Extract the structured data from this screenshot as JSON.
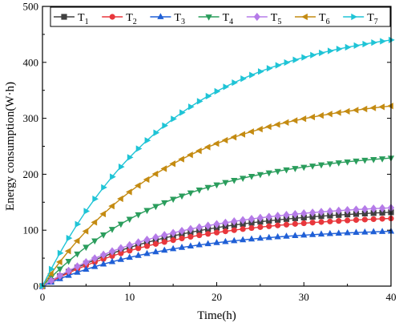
{
  "chart_data": {
    "type": "line",
    "xlabel": "Time(h)",
    "ylabel": "Energy consumption(W·h)",
    "xlim": [
      0,
      40
    ],
    "ylim": [
      0,
      500
    ],
    "xticks": [
      0,
      10,
      20,
      30,
      40
    ],
    "yticks": [
      0,
      100,
      200,
      300,
      400,
      500
    ],
    "grid": false,
    "legend_position": "top",
    "x": [
      0,
      40
    ],
    "series": [
      {
        "name": "T",
        "sub": "1",
        "color": "#404040",
        "marker": "square",
        "values": [
          0,
          132
        ]
      },
      {
        "name": "T",
        "sub": "2",
        "color": "#e8373c",
        "marker": "circle",
        "values": [
          0,
          121
        ]
      },
      {
        "name": "T",
        "sub": "3",
        "color": "#1f5fd6",
        "marker": "triangle-up",
        "values": [
          0,
          98
        ]
      },
      {
        "name": "T",
        "sub": "4",
        "color": "#2a9d5c",
        "marker": "triangle-down",
        "values": [
          0,
          229
        ]
      },
      {
        "name": "T",
        "sub": "5",
        "color": "#b57be8",
        "marker": "diamond",
        "values": [
          0,
          140
        ]
      },
      {
        "name": "T",
        "sub": "6",
        "color": "#c48b12",
        "marker": "triangle-left",
        "values": [
          0,
          322
        ]
      },
      {
        "name": "T",
        "sub": "7",
        "color": "#1fc4d6",
        "marker": "triangle-right",
        "values": [
          0,
          440
        ]
      }
    ]
  }
}
